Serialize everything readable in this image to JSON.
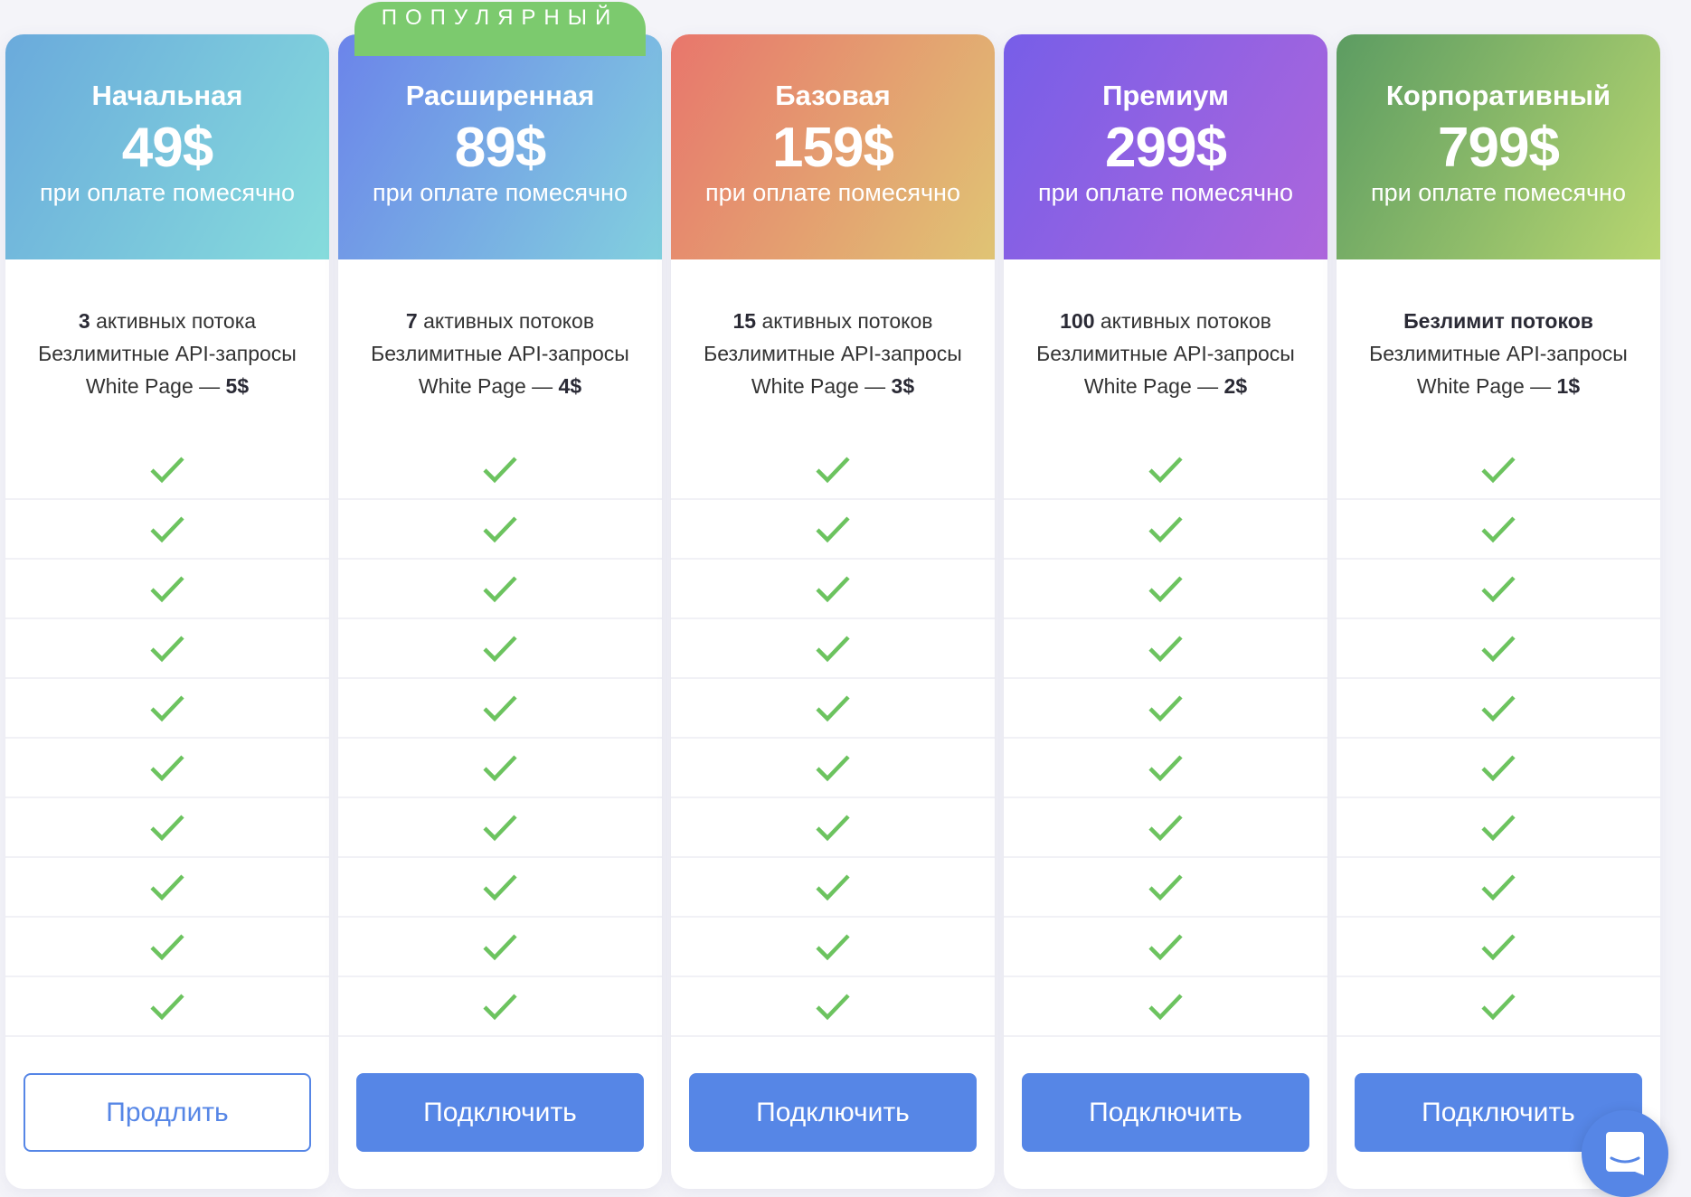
{
  "badge": "ПОПУЛЯРНЫЙ",
  "colors": {
    "accent": "#5686e6",
    "check": "#6cc35f",
    "badge": "#7cca6e"
  },
  "plans": [
    {
      "title": "Начальная",
      "price": "49$",
      "period": "при оплате помесячно",
      "streams_count": "3",
      "streams_label": " активных потока",
      "api": "Безлимитные API-запросы",
      "wp_label": "White Page — ",
      "wp_price": "5$",
      "button": "Продлить",
      "button_style": "outline",
      "gradient": [
        "#6aaadc",
        "#86dcdc"
      ]
    },
    {
      "title": "Расширенная",
      "price": "89$",
      "period": "при оплате помесячно",
      "streams_count": "7",
      "streams_label": " активных потоков",
      "api": "Безлимитные API-запросы",
      "wp_label": "White Page — ",
      "wp_price": "4$",
      "button": "Подключить",
      "button_style": "filled",
      "gradient": [
        "#6b84ea",
        "#82d0de"
      ]
    },
    {
      "title": "Базовая",
      "price": "159$",
      "period": "при оплате помесячно",
      "streams_count": "15",
      "streams_label": " активных потоков",
      "api": "Безлимитные API-запросы",
      "wp_label": "White Page — ",
      "wp_price": "3$",
      "button": "Подключить",
      "button_style": "filled",
      "gradient": [
        "#e8766c",
        "#e0c474"
      ]
    },
    {
      "title": "Премиум",
      "price": "299$",
      "period": "при оплате помесячно",
      "streams_count": "100",
      "streams_label": " активных потоков",
      "api": "Безлимитные API-запросы",
      "wp_label": "White Page — ",
      "wp_price": "2$",
      "button": "Подключить",
      "button_style": "filled",
      "gradient": [
        "#775ee8",
        "#ad66dc"
      ]
    },
    {
      "title": "Корпоративный",
      "price": "799$",
      "period": "при оплате помесячно",
      "streams_count": "Безлимит потоков",
      "streams_label": "",
      "api": "Безлимитные API-запросы",
      "wp_label": "White Page — ",
      "wp_price": "1$",
      "button": "Подключить",
      "button_style": "filled",
      "gradient": [
        "#5c9c62",
        "#b8d670"
      ]
    }
  ],
  "feature_checks_per_plan": 10,
  "chat": {
    "icon": "chat-icon"
  }
}
